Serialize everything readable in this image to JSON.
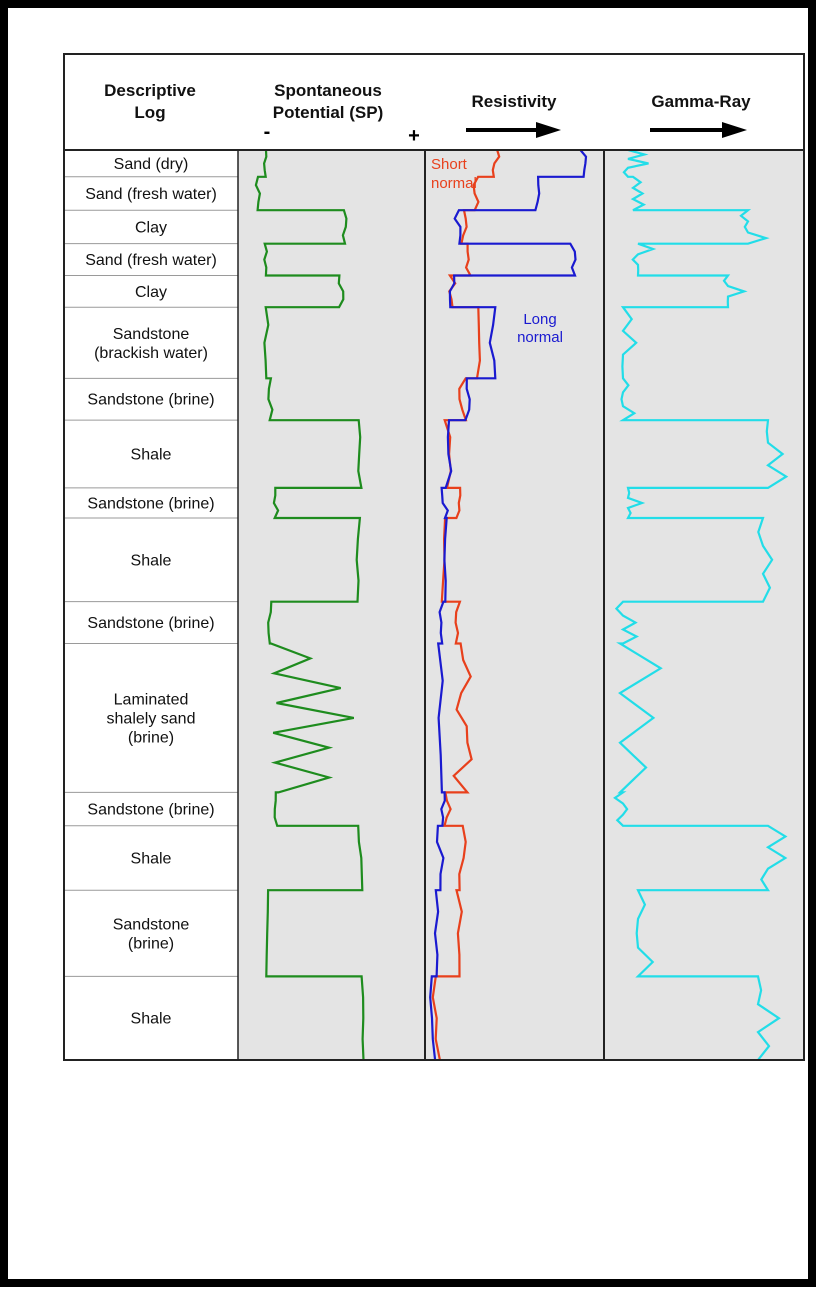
{
  "columns": {
    "descriptive": [
      "Descriptive",
      "Log"
    ],
    "sp": [
      "Spontaneous",
      "Potential (SP)"
    ],
    "sp_minus": "-",
    "sp_plus": "+",
    "resistivity": "Resistivity",
    "gamma": "Gamma-Ray"
  },
  "curve_labels": {
    "short_normal": [
      "Short",
      "normal"
    ],
    "long_normal": [
      "Long",
      "normal"
    ]
  },
  "colors": {
    "sp": "#1e8c1e",
    "short_normal": "#e8401c",
    "long_normal": "#1a1ad0",
    "gamma": "#22dde8",
    "track_fill": "#e4e4e4"
  },
  "lithology": [
    {
      "lines": [
        "Sand (dry)"
      ]
    },
    {
      "lines": [
        "Sand (fresh water)"
      ]
    },
    {
      "lines": [
        "Clay"
      ]
    },
    {
      "lines": [
        "Sand (fresh water)"
      ]
    },
    {
      "lines": [
        "Clay"
      ]
    },
    {
      "lines": [
        "Sandstone",
        "(brackish water)"
      ]
    },
    {
      "lines": [
        "Sandstone (brine)"
      ]
    },
    {
      "lines": [
        "Shale"
      ]
    },
    {
      "lines": [
        "Sandstone (brine)"
      ]
    },
    {
      "lines": [
        "Shale"
      ]
    },
    {
      "lines": [
        "Sandstone (brine)"
      ]
    },
    {
      "lines": [
        "Laminated",
        "shalely sand",
        "(brine)"
      ]
    },
    {
      "lines": [
        "Sandstone (brine)"
      ]
    },
    {
      "lines": [
        "Shale"
      ]
    },
    {
      "lines": [
        "Sandstone",
        "(brine)"
      ]
    },
    {
      "lines": [
        "Shale"
      ]
    }
  ]
}
